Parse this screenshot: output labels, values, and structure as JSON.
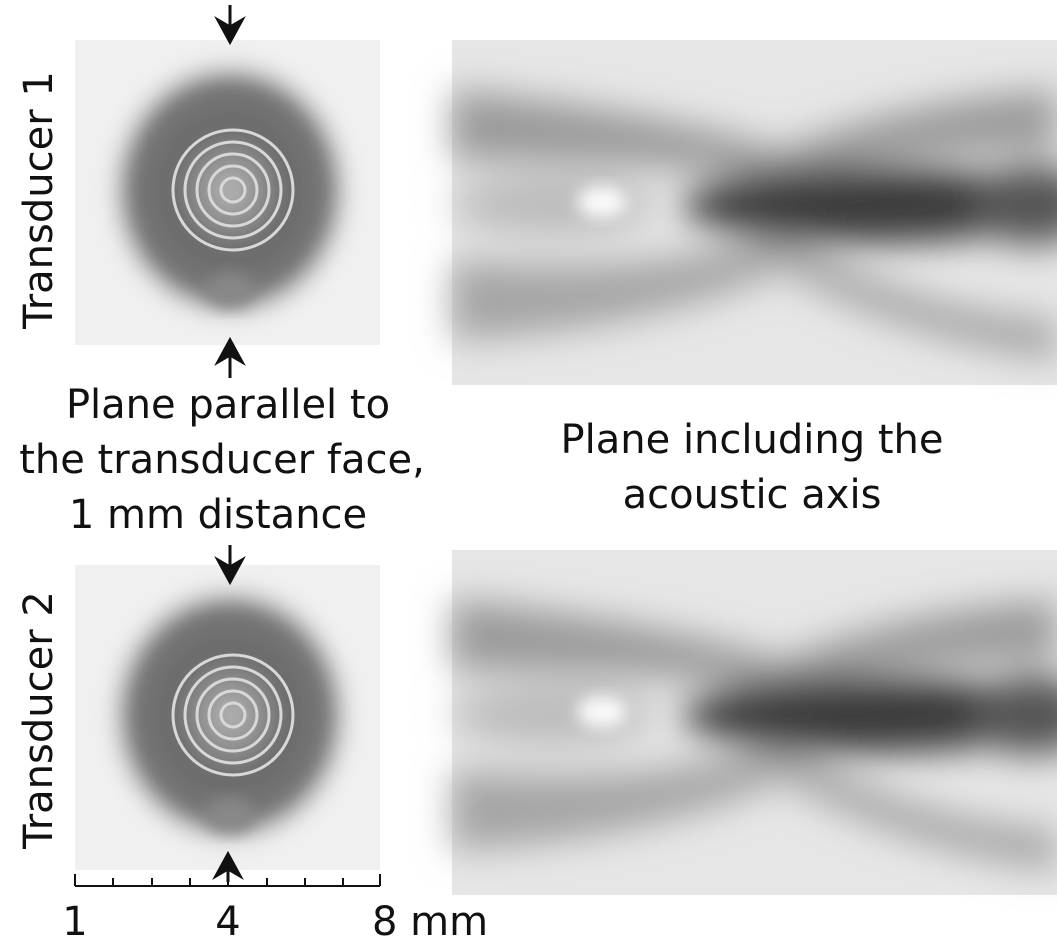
{
  "rows": [
    {
      "label": "Transducer 1"
    },
    {
      "label": "Transducer 2"
    }
  ],
  "captions": {
    "left": [
      "Plane parallel to",
      "the transducer face,",
      "1 mm distance"
    ],
    "right": [
      "Plane including the",
      "acoustic axis"
    ]
  },
  "scale_bar": {
    "labels": [
      "1",
      "4",
      "8 mm"
    ]
  }
}
